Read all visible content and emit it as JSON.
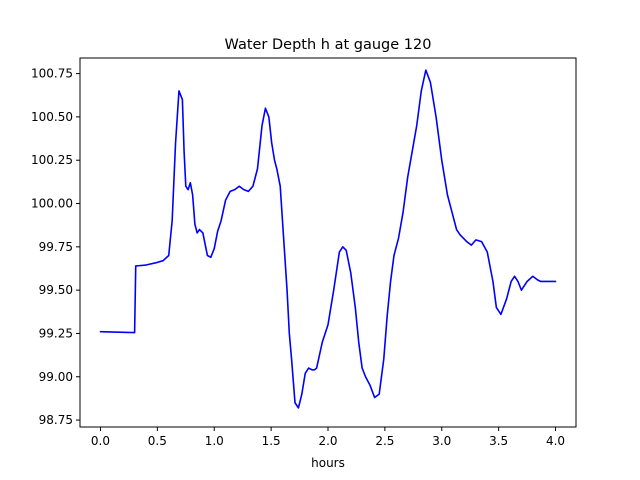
{
  "chart_data": {
    "type": "line",
    "title": "Water Depth h at gauge 120",
    "xlabel": "hours",
    "ylabel": "",
    "xlim": [
      -0.18,
      4.18
    ],
    "ylim": [
      98.71,
      100.84
    ],
    "xticks": [
      0.0,
      0.5,
      1.0,
      1.5,
      2.0,
      2.5,
      3.0,
      3.5,
      4.0
    ],
    "xtick_labels": [
      "0.0",
      "0.5",
      "1.0",
      "1.5",
      "2.0",
      "2.5",
      "3.0",
      "3.5",
      "4.0"
    ],
    "yticks": [
      98.75,
      99.0,
      99.25,
      99.5,
      99.75,
      100.0,
      100.25,
      100.5,
      100.75
    ],
    "ytick_labels": [
      "98.75",
      "99.00",
      "99.25",
      "99.50",
      "99.75",
      "100.00",
      "100.25",
      "100.50",
      "100.75"
    ],
    "grid": false,
    "series": [
      {
        "color": "#0000ff",
        "x": [
          0.0,
          0.3,
          0.31,
          0.32,
          0.4,
          0.5,
          0.55,
          0.6,
          0.63,
          0.66,
          0.69,
          0.72,
          0.735,
          0.75,
          0.77,
          0.79,
          0.81,
          0.83,
          0.85,
          0.87,
          0.9,
          0.94,
          0.97,
          1.0,
          1.03,
          1.06,
          1.1,
          1.14,
          1.18,
          1.22,
          1.26,
          1.3,
          1.34,
          1.38,
          1.42,
          1.45,
          1.48,
          1.505,
          1.53,
          1.55,
          1.58,
          1.61,
          1.64,
          1.66,
          1.68,
          1.71,
          1.74,
          1.77,
          1.8,
          1.83,
          1.86,
          1.88,
          1.9,
          1.95,
          2.0,
          2.05,
          2.1,
          2.13,
          2.16,
          2.2,
          2.24,
          2.27,
          2.3,
          2.33,
          2.37,
          2.41,
          2.45,
          2.49,
          2.52,
          2.55,
          2.58,
          2.62,
          2.66,
          2.7,
          2.74,
          2.78,
          2.82,
          2.86,
          2.9,
          2.95,
          3.0,
          3.05,
          3.09,
          3.13,
          3.16,
          3.19,
          3.22,
          3.26,
          3.3,
          3.35,
          3.4,
          3.45,
          3.48,
          3.52,
          3.57,
          3.61,
          3.64,
          3.67,
          3.7,
          3.75,
          3.8,
          3.84,
          3.87,
          3.9,
          3.95,
          3.98,
          4.0
        ],
        "y": [
          99.26,
          99.255,
          99.64,
          99.64,
          99.645,
          99.66,
          99.67,
          99.7,
          99.9,
          100.35,
          100.65,
          100.6,
          100.3,
          100.1,
          100.08,
          100.12,
          100.05,
          99.88,
          99.83,
          99.85,
          99.83,
          99.7,
          99.69,
          99.74,
          99.84,
          99.9,
          100.02,
          100.07,
          100.08,
          100.1,
          100.08,
          100.07,
          100.1,
          100.2,
          100.45,
          100.55,
          100.5,
          100.35,
          100.25,
          100.2,
          100.1,
          99.8,
          99.5,
          99.25,
          99.1,
          98.85,
          98.82,
          98.9,
          99.02,
          99.05,
          99.04,
          99.04,
          99.05,
          99.2,
          99.3,
          99.5,
          99.72,
          99.75,
          99.73,
          99.6,
          99.4,
          99.2,
          99.05,
          99.0,
          98.95,
          98.88,
          98.9,
          99.1,
          99.35,
          99.55,
          99.7,
          99.8,
          99.95,
          100.15,
          100.3,
          100.45,
          100.65,
          100.77,
          100.7,
          100.5,
          100.25,
          100.05,
          99.95,
          99.85,
          99.82,
          99.8,
          99.78,
          99.76,
          99.79,
          99.78,
          99.72,
          99.55,
          99.4,
          99.36,
          99.45,
          99.55,
          99.58,
          99.55,
          99.5,
          99.55,
          99.58,
          99.56,
          99.55,
          99.55,
          99.55,
          99.55,
          99.55
        ]
      }
    ]
  }
}
